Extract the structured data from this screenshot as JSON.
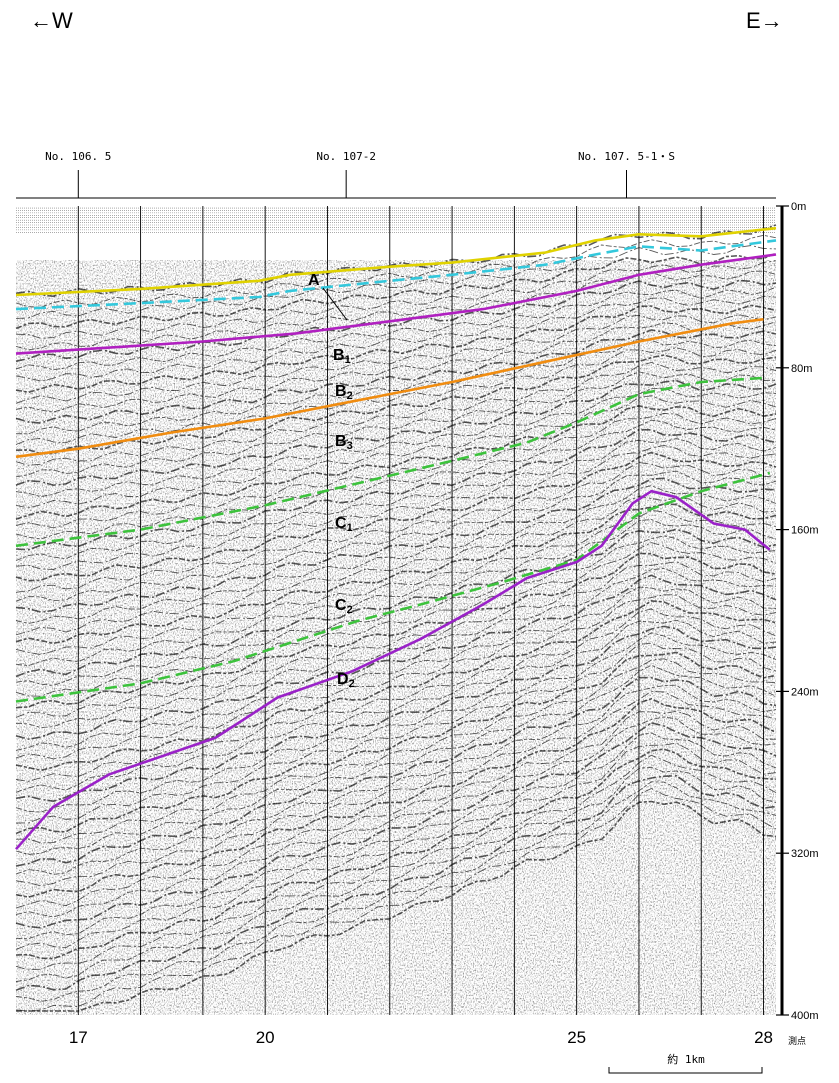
{
  "header": {
    "west_label": "←W",
    "east_label": "E→"
  },
  "top_stations": [
    {
      "label": "No. 106. 5",
      "at": 17
    },
    {
      "label": "No. 107-2",
      "at": 21.3
    },
    {
      "label": "No. 107. 5-1・S",
      "at": 25.8
    }
  ],
  "depth_axis": {
    "ticks": [
      {
        "value": 0,
        "label": "0m"
      },
      {
        "value": 80,
        "label": "80m"
      },
      {
        "value": 160,
        "label": "160m"
      },
      {
        "value": 240,
        "label": "240m"
      },
      {
        "value": 320,
        "label": "320m"
      },
      {
        "value": 400,
        "label": "400m"
      }
    ],
    "range": [
      0,
      400
    ]
  },
  "bottom_axis": {
    "ticks": [
      {
        "value": 17,
        "label": "17"
      },
      {
        "value": 20,
        "label": "20"
      },
      {
        "value": 25,
        "label": "25"
      },
      {
        "value": 28,
        "label": "28"
      }
    ],
    "unit_label": "測点",
    "range": [
      16,
      28.2
    ]
  },
  "scale_bar": {
    "label": "約 1km"
  },
  "horizons": [
    {
      "id": "A",
      "color": "#e0d200",
      "style": "solid",
      "points": [
        [
          16,
          44
        ],
        [
          18,
          41
        ],
        [
          19.9,
          37
        ],
        [
          20.4,
          34
        ],
        [
          22,
          30
        ],
        [
          23,
          28
        ],
        [
          24.5,
          23
        ],
        [
          25.3,
          17
        ],
        [
          26,
          14
        ],
        [
          27,
          15
        ],
        [
          28.2,
          11
        ]
      ]
    },
    {
      "id": "B1",
      "color": "#33c8dc",
      "style": "dashed",
      "points": [
        [
          16,
          51
        ],
        [
          18,
          48
        ],
        [
          19.9,
          45
        ],
        [
          20.4,
          42
        ],
        [
          22,
          37
        ],
        [
          23,
          34
        ],
        [
          24.5,
          29
        ],
        [
          25.3,
          24
        ],
        [
          26,
          20
        ],
        [
          27,
          22
        ],
        [
          28.2,
          17
        ]
      ]
    },
    {
      "id": "B2",
      "color": "#b020c0",
      "style": "solid",
      "points": [
        [
          16,
          73
        ],
        [
          17.5,
          70
        ],
        [
          19,
          67
        ],
        [
          20.5,
          63
        ],
        [
          22,
          57
        ],
        [
          23.5,
          51
        ],
        [
          25,
          42
        ],
        [
          26,
          34
        ],
        [
          27,
          29
        ],
        [
          28.2,
          24
        ]
      ]
    },
    {
      "id": "B3",
      "color": "#f08c10",
      "style": "solid",
      "points": [
        [
          16,
          124
        ],
        [
          17,
          120
        ],
        [
          18.5,
          112
        ],
        [
          20,
          105
        ],
        [
          21.5,
          96
        ],
        [
          23,
          87
        ],
        [
          24.5,
          77
        ],
        [
          26,
          67
        ],
        [
          27.5,
          58
        ],
        [
          28,
          56
        ]
      ]
    },
    {
      "id": "C1",
      "color": "#3cc23c",
      "style": "dashed",
      "points": [
        [
          16,
          168
        ],
        [
          18,
          160
        ],
        [
          20,
          148
        ],
        [
          21.5,
          137
        ],
        [
          23,
          126
        ],
        [
          24.2,
          117
        ],
        [
          25,
          107
        ],
        [
          26,
          93
        ],
        [
          27,
          87
        ],
        [
          28,
          85
        ]
      ]
    },
    {
      "id": "C2",
      "color": "#3cc23c",
      "style": "dashed",
      "points": [
        [
          16,
          245
        ],
        [
          18,
          236
        ],
        [
          19.5,
          225
        ],
        [
          20.5,
          215
        ],
        [
          21.5,
          205
        ],
        [
          22.5,
          197
        ],
        [
          23.8,
          186
        ],
        [
          25,
          175
        ],
        [
          26,
          152
        ],
        [
          27,
          141
        ],
        [
          28.1,
          132
        ]
      ]
    },
    {
      "id": "D2",
      "color": "#9a22c8",
      "style": "solid",
      "points": [
        [
          16,
          318
        ],
        [
          16.6,
          297
        ],
        [
          17.5,
          281
        ],
        [
          19.2,
          263
        ],
        [
          20.2,
          243
        ],
        [
          21.4,
          230
        ],
        [
          22.5,
          214
        ],
        [
          23.5,
          197
        ],
        [
          24.2,
          184
        ],
        [
          25,
          176
        ],
        [
          25.4,
          168
        ],
        [
          25.9,
          147
        ],
        [
          26.2,
          141
        ],
        [
          26.6,
          144
        ],
        [
          27.2,
          157
        ],
        [
          27.7,
          160
        ],
        [
          28.1,
          170
        ]
      ]
    }
  ],
  "horizon_labels": [
    {
      "text": "A",
      "id": "A"
    },
    {
      "text": "B1",
      "id": "B1"
    },
    {
      "text": "B2",
      "id": "B2"
    },
    {
      "text": "B3",
      "id": "B3"
    },
    {
      "text": "C1",
      "id": "C1"
    },
    {
      "text": "C2",
      "id": "C2"
    },
    {
      "text": "D2",
      "id": "D2"
    }
  ]
}
